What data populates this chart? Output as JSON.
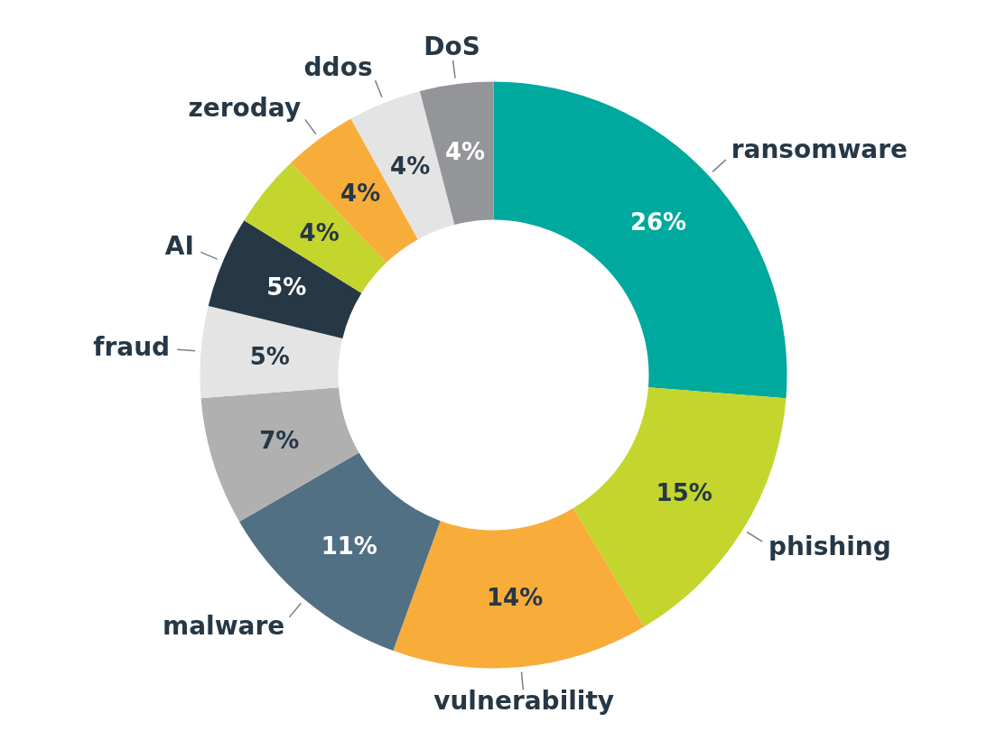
{
  "chart_data": {
    "type": "donut",
    "categories": [
      "ransomware",
      "phishing",
      "vulnerability",
      "malware",
      null,
      "fraud",
      "AI",
      null,
      "zeroday",
      "ddos",
      "DoS"
    ],
    "values": [
      26,
      15,
      14,
      11,
      7,
      5,
      5,
      4,
      4,
      4,
      4
    ],
    "value_labels": [
      "26%",
      "15%",
      "14%",
      "11%",
      "7%",
      "5%",
      "5%",
      "4%",
      "4%",
      "4%",
      "4%"
    ],
    "colors": [
      "#00a99d",
      "#c4d52e",
      "#f8ad3a",
      "#527084",
      "#b0b0b0",
      "#e4e4e4",
      "#263746",
      "#c4d52e",
      "#f8ad3a",
      "#e4e4e4",
      "#939598"
    ],
    "legend": false
  }
}
